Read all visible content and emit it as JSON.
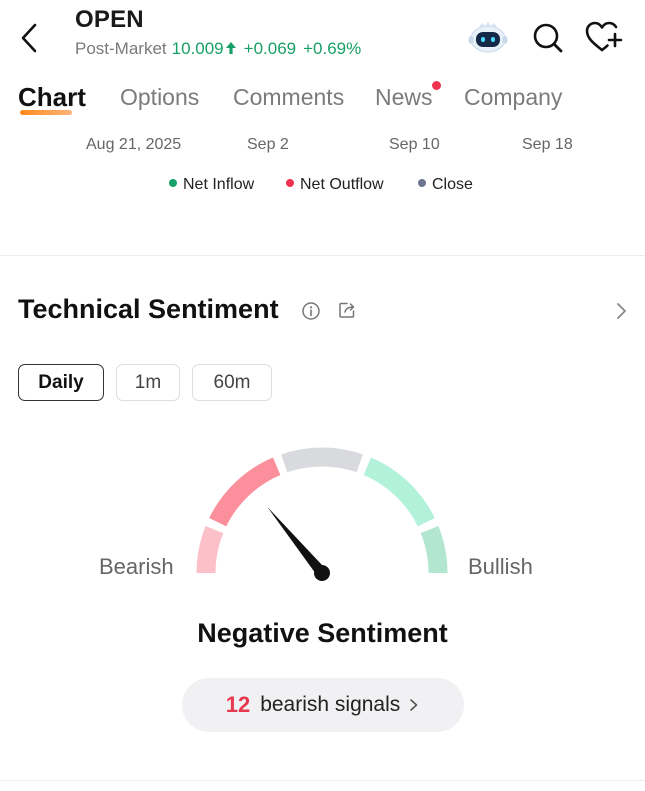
{
  "header": {
    "ticker": "OPEN",
    "post_market_label": "Post-Market",
    "price": "10.009",
    "change": "+0.069",
    "change_pct": "+0.69%",
    "up_color": "#17a067"
  },
  "header_icons": [
    "back-icon",
    "ai-assistant-robot-icon",
    "search-icon",
    "add-to-watchlist-heart-icon"
  ],
  "tabs": [
    {
      "label": "Chart",
      "active": true
    },
    {
      "label": "Options",
      "active": false
    },
    {
      "label": "Comments",
      "active": false
    },
    {
      "label": "News",
      "active": false,
      "notification_dot": true
    },
    {
      "label": "Company",
      "active": false
    }
  ],
  "chart_axis": {
    "dates": [
      "Aug 21, 2025",
      "Sep 2",
      "Sep 10",
      "Sep 18"
    ]
  },
  "legend": [
    {
      "label": "Net Inflow",
      "color": "#17a067"
    },
    {
      "label": "Net Outflow",
      "color": "#f0324f"
    },
    {
      "label": "Close",
      "color": "#6c7690"
    }
  ],
  "technical_sentiment": {
    "title": "Technical Sentiment",
    "periods": [
      {
        "label": "Daily",
        "active": true
      },
      {
        "label": "1m",
        "active": false
      },
      {
        "label": "60m",
        "active": false
      }
    ],
    "gauge": {
      "left_label": "Bearish",
      "right_label": "Bullish",
      "needle_level": 0.28,
      "segment_colors": [
        "#fbc0c8",
        "#fb8f9c",
        "#d8dadd",
        "#b3f2da",
        "#b2e6d0"
      ]
    },
    "sentiment": "Negative Sentiment",
    "signals_count": "12",
    "signals_label": "bearish signals"
  }
}
